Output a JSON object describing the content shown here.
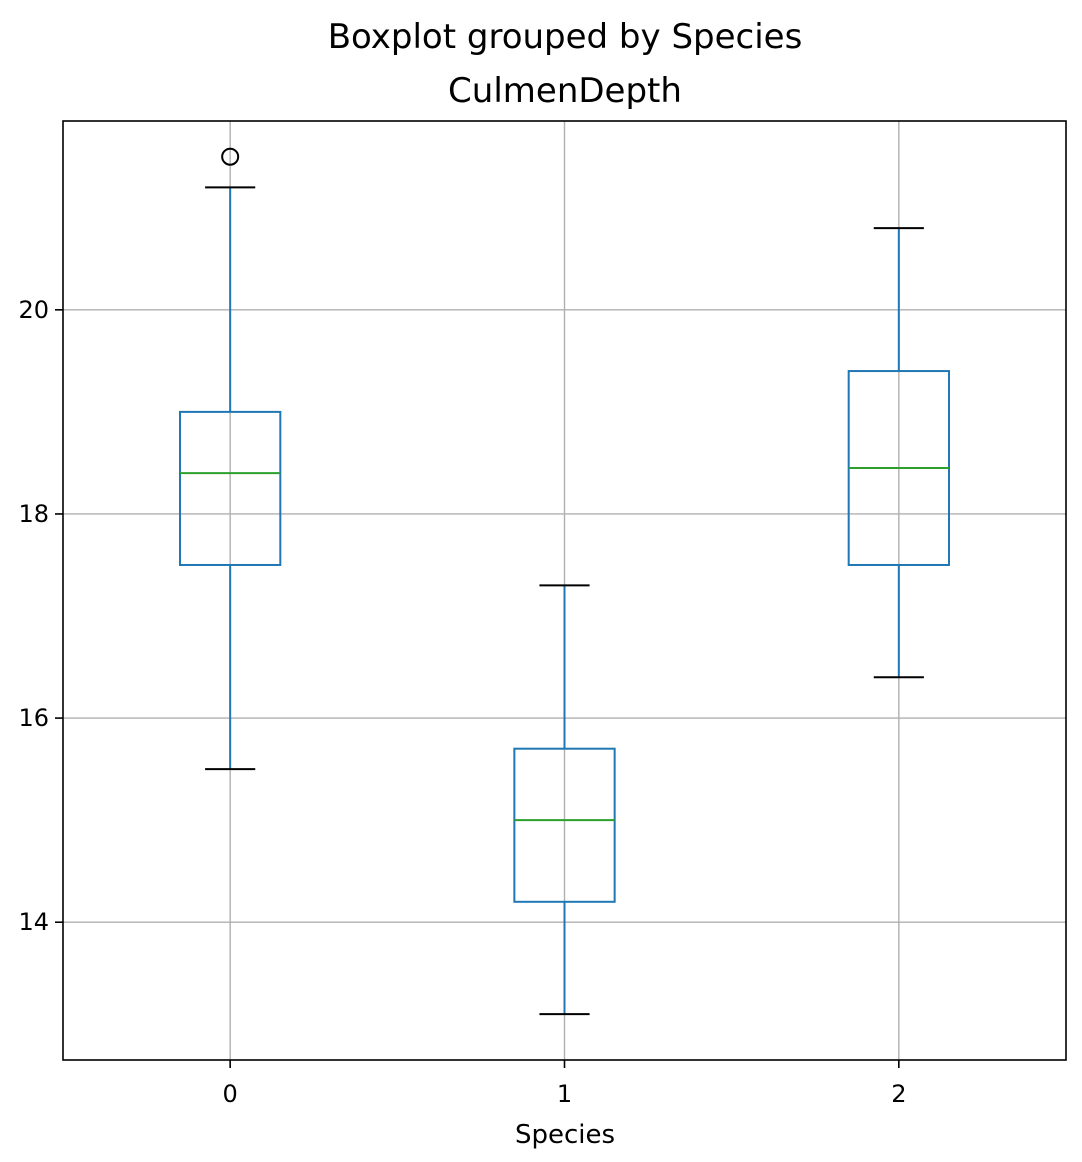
{
  "suptitle": "Boxplot grouped by Species",
  "chart_data": {
    "type": "box",
    "title": "CulmenDepth",
    "xlabel": "Species",
    "ylabel": "",
    "categories": [
      "0",
      "1",
      "2"
    ],
    "ylim": [
      12.65,
      21.85
    ],
    "yticks": [
      14,
      16,
      18,
      20
    ],
    "grid": true,
    "legend": "none",
    "boxes": [
      {
        "category": "0",
        "whisker_low": 15.5,
        "q1": 17.5,
        "median": 18.4,
        "q3": 19.0,
        "whisker_high": 21.2,
        "outliers": [
          21.5
        ]
      },
      {
        "category": "1",
        "whisker_low": 13.1,
        "q1": 14.2,
        "median": 15.0,
        "q3": 15.7,
        "whisker_high": 17.3,
        "outliers": []
      },
      {
        "category": "2",
        "whisker_low": 16.4,
        "q1": 17.5,
        "median": 18.45,
        "q3": 19.4,
        "whisker_high": 20.8,
        "outliers": []
      }
    ],
    "colors": {
      "box": "#1f77b4",
      "median": "#2ca02c",
      "whisker_cap": "#000000",
      "grid": "#b0b0b0",
      "frame": "#000000"
    }
  }
}
